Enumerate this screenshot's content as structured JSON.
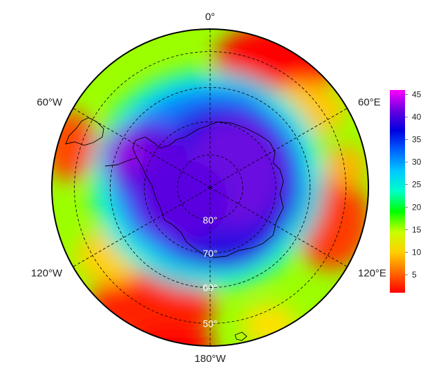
{
  "map": {
    "projection": "south-polar-stereographic",
    "meridian_labels": [
      {
        "lon": 0,
        "text": "0°"
      },
      {
        "lon": -60,
        "text": "60°W"
      },
      {
        "lon": 60,
        "text": "60°E"
      },
      {
        "lon": -120,
        "text": "120°W"
      },
      {
        "lon": 120,
        "text": "120°E"
      },
      {
        "lon": 180,
        "text": "180°W"
      }
    ],
    "latitude_labels": [
      {
        "lat": -80,
        "text": "80°"
      },
      {
        "lat": -70,
        "text": "70°"
      },
      {
        "lat": -60,
        "text": "60°"
      },
      {
        "lat": -50,
        "text": "50°"
      }
    ],
    "graticule_latitudes": [
      -80,
      -70,
      -60,
      -50
    ],
    "graticule_meridians": [
      0,
      60,
      120,
      180,
      -120,
      -60
    ]
  },
  "colorbar": {
    "min": 1,
    "max": 46,
    "ticks": [
      5,
      10,
      15,
      20,
      25,
      30,
      35,
      40,
      45
    ],
    "colors": [
      "#ff0000",
      "#ff6a00",
      "#ffd000",
      "#c8ff00",
      "#00ff00",
      "#00ffc8",
      "#00c8ff",
      "#0064ff",
      "#0000e0",
      "#6a00e0",
      "#ff00ff"
    ]
  }
}
